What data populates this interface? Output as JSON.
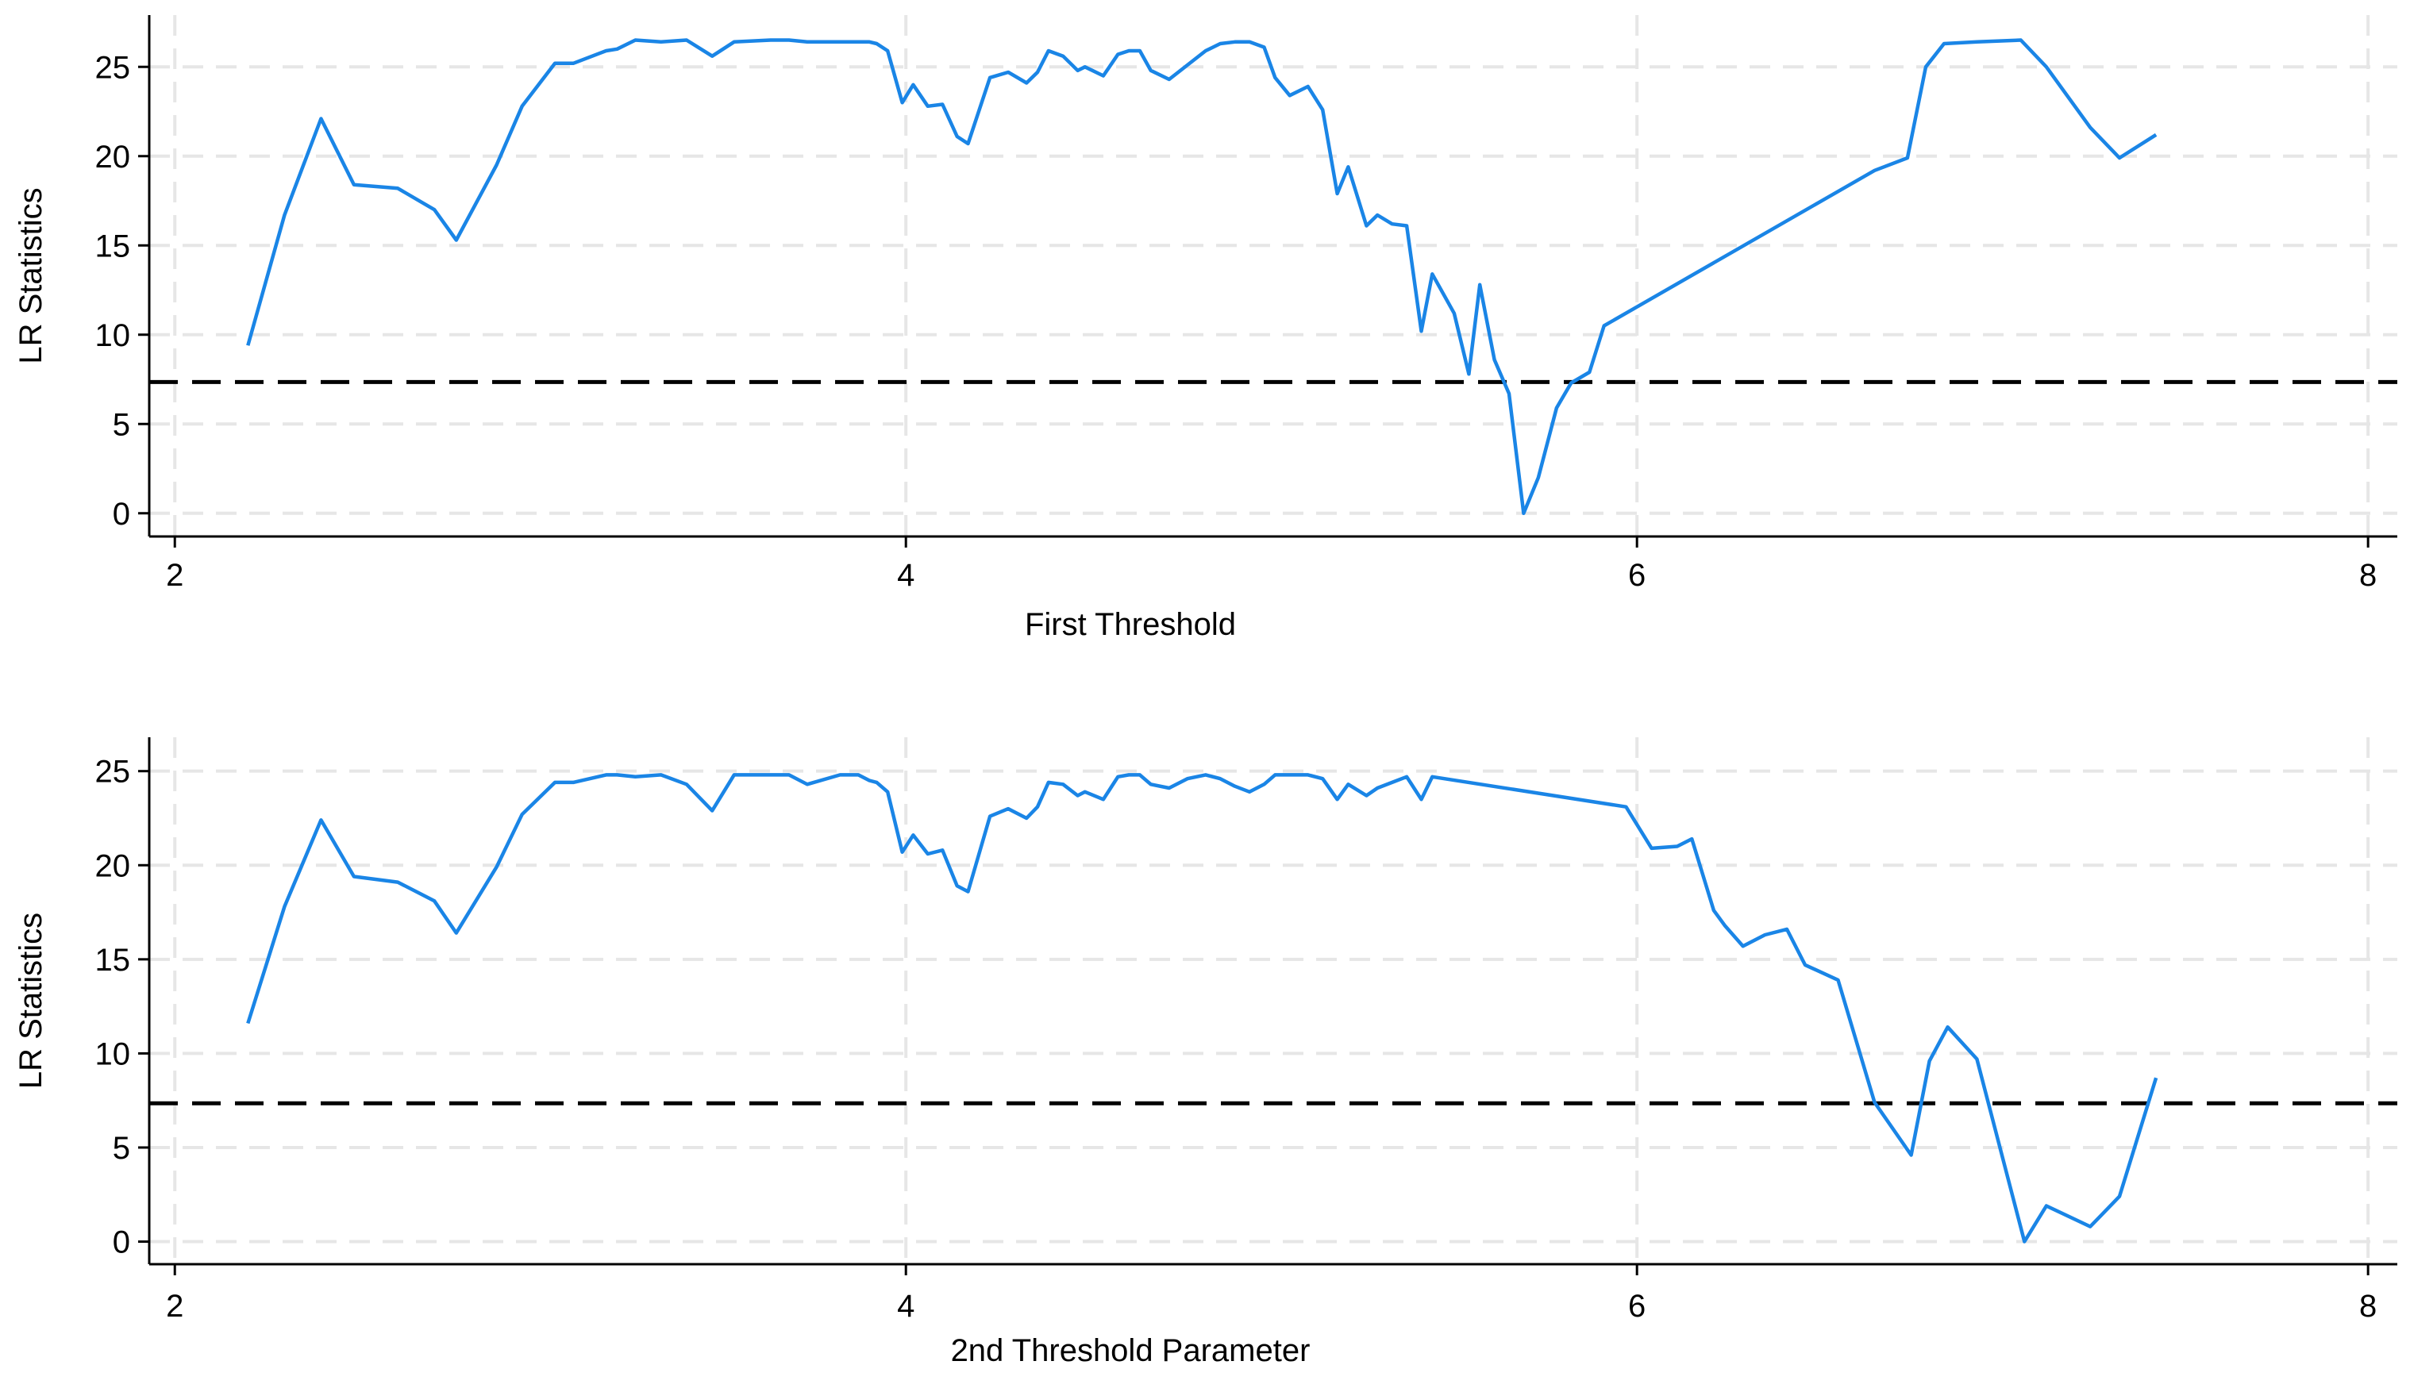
{
  "chart_data": [
    {
      "type": "line",
      "xlabel": "First Threshold",
      "ylabel": "LR Statistics",
      "xlim": [
        1.93,
        8.08
      ],
      "ylim": [
        -1.3,
        27.9
      ],
      "xticks": [
        2,
        4,
        6,
        8
      ],
      "yticks": [
        0,
        5,
        10,
        15,
        20,
        25
      ],
      "grid": true,
      "color": "#1a85e6",
      "reference_line": 7.35,
      "reference_color": "#000000",
      "x": [
        2.2,
        2.3,
        2.4,
        2.49,
        2.61,
        2.71,
        2.77,
        2.88,
        2.95,
        3.04,
        3.09,
        3.18,
        3.21,
        3.26,
        3.33,
        3.4,
        3.47,
        3.53,
        3.63,
        3.68,
        3.73,
        3.82,
        3.9,
        3.92,
        3.95,
        3.99,
        4.02,
        4.06,
        4.1,
        4.14,
        4.17,
        4.23,
        4.28,
        4.33,
        4.36,
        4.39,
        4.43,
        4.47,
        4.49,
        4.54,
        4.58,
        4.61,
        4.64,
        4.67,
        4.72,
        4.77,
        4.82,
        4.86,
        4.9,
        4.94,
        4.98,
        5.01,
        5.05,
        5.1,
        5.14,
        5.18,
        5.21,
        5.26,
        5.29,
        5.33,
        5.37,
        5.41,
        5.44,
        5.5,
        5.54,
        5.57,
        5.61,
        5.65,
        5.69,
        5.73,
        5.78,
        5.82,
        5.87,
        5.91,
        6.65,
        6.74,
        6.79,
        6.84,
        6.93,
        7.05,
        7.12,
        7.24,
        7.32,
        7.42
      ],
      "values": [
        9.4,
        16.7,
        22.1,
        18.4,
        18.2,
        17.0,
        15.3,
        19.5,
        22.8,
        25.2,
        25.2,
        25.9,
        26.0,
        26.5,
        26.4,
        26.5,
        25.6,
        26.4,
        26.5,
        26.5,
        26.4,
        26.4,
        26.4,
        26.3,
        25.9,
        23.0,
        24.0,
        22.8,
        22.9,
        21.1,
        20.7,
        24.4,
        24.7,
        24.1,
        24.7,
        25.9,
        25.6,
        24.8,
        25.0,
        24.5,
        25.7,
        25.9,
        25.9,
        24.8,
        24.3,
        25.1,
        25.9,
        26.3,
        26.4,
        26.4,
        26.1,
        24.4,
        23.4,
        23.9,
        22.6,
        17.9,
        19.4,
        16.1,
        16.7,
        16.2,
        16.1,
        10.2,
        13.4,
        11.2,
        7.8,
        12.8,
        8.6,
        6.7,
        0,
        2.0,
        5.9,
        7.3,
        7.9,
        10.5,
        19.2,
        19.9,
        25.0,
        26.3,
        26.4,
        26.5,
        25.0,
        21.6,
        19.9,
        21.2
      ]
    },
    {
      "type": "line",
      "xlabel": "2nd Threshold Parameter",
      "ylabel": "LR Statistics",
      "xlim": [
        1.93,
        8.08
      ],
      "ylim": [
        -1.2,
        26.8
      ],
      "xticks": [
        2,
        4,
        6,
        8
      ],
      "yticks": [
        0,
        5,
        10,
        15,
        20,
        25
      ],
      "grid": true,
      "color": "#1a85e6",
      "reference_line": 7.35,
      "reference_color": "#000000",
      "x": [
        2.2,
        2.3,
        2.4,
        2.49,
        2.61,
        2.71,
        2.77,
        2.88,
        2.95,
        3.04,
        3.09,
        3.18,
        3.21,
        3.26,
        3.33,
        3.4,
        3.47,
        3.53,
        3.61,
        3.63,
        3.68,
        3.73,
        3.82,
        3.87,
        3.9,
        3.92,
        3.95,
        3.99,
        4.02,
        4.06,
        4.1,
        4.14,
        4.17,
        4.23,
        4.28,
        4.33,
        4.36,
        4.39,
        4.43,
        4.47,
        4.49,
        4.54,
        4.58,
        4.61,
        4.64,
        4.67,
        4.72,
        4.77,
        4.82,
        4.86,
        4.9,
        4.94,
        4.98,
        5.01,
        5.05,
        5.1,
        5.14,
        5.18,
        5.21,
        5.26,
        5.29,
        5.33,
        5.37,
        5.41,
        5.44,
        5.97,
        6.04,
        6.11,
        6.15,
        6.21,
        6.24,
        6.29,
        6.35,
        6.41,
        6.46,
        6.55,
        6.65,
        6.75,
        6.8,
        6.85,
        6.93,
        7.06,
        7.12,
        7.24,
        7.32,
        7.42
      ],
      "values": [
        11.6,
        17.8,
        22.4,
        19.4,
        19.1,
        18.1,
        16.4,
        19.9,
        22.7,
        24.4,
        24.4,
        24.8,
        24.8,
        24.7,
        24.8,
        24.3,
        22.9,
        24.8,
        24.8,
        24.8,
        24.8,
        24.3,
        24.8,
        24.8,
        24.5,
        24.4,
        23.9,
        20.7,
        21.6,
        20.6,
        20.8,
        18.9,
        18.6,
        22.6,
        23.0,
        22.5,
        23.1,
        24.4,
        24.3,
        23.7,
        23.9,
        23.5,
        24.7,
        24.8,
        24.8,
        24.3,
        24.1,
        24.6,
        24.8,
        24.6,
        24.2,
        23.9,
        24.3,
        24.8,
        24.8,
        24.8,
        24.6,
        23.5,
        24.3,
        23.7,
        24.1,
        24.4,
        24.7,
        23.5,
        24.7,
        23.1,
        20.9,
        21.0,
        21.4,
        17.6,
        16.8,
        15.7,
        16.3,
        16.6,
        14.7,
        13.9,
        7.4,
        4.6,
        9.6,
        11.4,
        9.7,
        0,
        1.9,
        0.8,
        2.4,
        8.7
      ]
    }
  ]
}
